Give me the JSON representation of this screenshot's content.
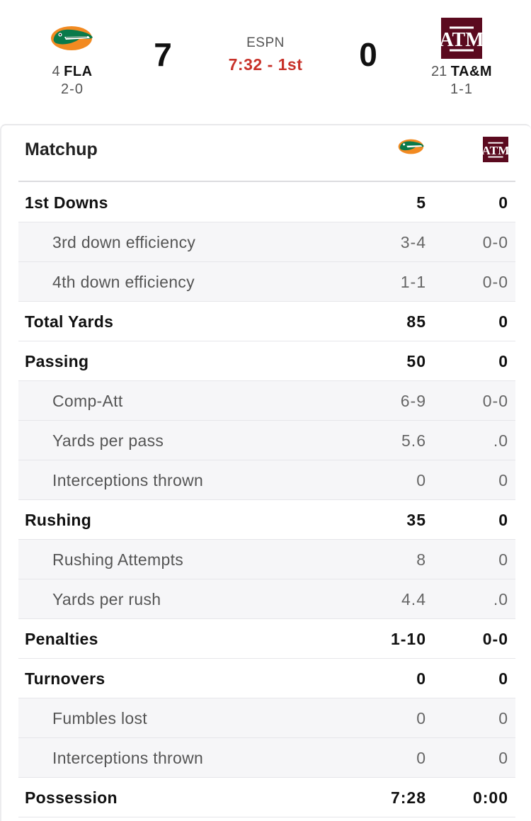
{
  "game": {
    "network": "ESPN",
    "clock": "7:32 - 1st",
    "away": {
      "rank": "4",
      "abbr": "FLA",
      "record": "2-0",
      "score": "7",
      "logo_icon": "florida-gator-logo-icon",
      "color": "#0a7a4a"
    },
    "home": {
      "rank": "21",
      "abbr": "TA&M",
      "record": "1-1",
      "score": "0",
      "logo_icon": "texas-am-logo-icon",
      "color": "#5b0a1f",
      "logo_text": "ATM"
    }
  },
  "matchup": {
    "title": "Matchup",
    "rows": [
      {
        "type": "main",
        "label": "1st Downs",
        "away": "5",
        "home": "0"
      },
      {
        "type": "sub",
        "label": "3rd down efficiency",
        "away": "3-4",
        "home": "0-0"
      },
      {
        "type": "sub",
        "label": "4th down efficiency",
        "away": "1-1",
        "home": "0-0"
      },
      {
        "type": "main",
        "label": "Total Yards",
        "away": "85",
        "home": "0"
      },
      {
        "type": "main",
        "label": "Passing",
        "away": "50",
        "home": "0"
      },
      {
        "type": "sub",
        "label": "Comp-Att",
        "away": "6-9",
        "home": "0-0"
      },
      {
        "type": "sub",
        "label": "Yards per pass",
        "away": "5.6",
        "home": ".0"
      },
      {
        "type": "sub",
        "label": "Interceptions thrown",
        "away": "0",
        "home": "0"
      },
      {
        "type": "main",
        "label": "Rushing",
        "away": "35",
        "home": "0"
      },
      {
        "type": "sub",
        "label": "Rushing Attempts",
        "away": "8",
        "home": "0"
      },
      {
        "type": "sub",
        "label": "Yards per rush",
        "away": "4.4",
        "home": ".0"
      },
      {
        "type": "main",
        "label": "Penalties",
        "away": "1-10",
        "home": "0-0"
      },
      {
        "type": "main",
        "label": "Turnovers",
        "away": "0",
        "home": "0"
      },
      {
        "type": "sub",
        "label": "Fumbles lost",
        "away": "0",
        "home": "0"
      },
      {
        "type": "sub",
        "label": "Interceptions thrown",
        "away": "0",
        "home": "0"
      },
      {
        "type": "main",
        "label": "Possession",
        "away": "7:28",
        "home": "0:00"
      }
    ]
  }
}
